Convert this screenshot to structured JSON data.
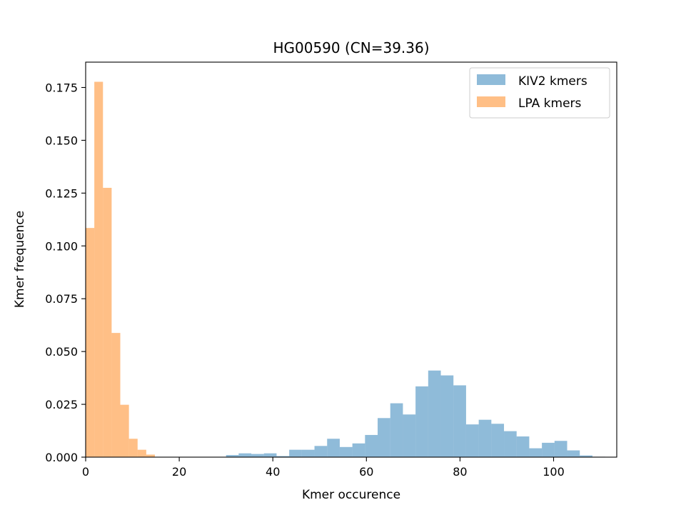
{
  "chart_data": {
    "type": "bar",
    "title": "HG00590 (CN=39.36)",
    "xlabel": "Kmer occurence",
    "ylabel": "Kmer frequence",
    "xlim": [
      0,
      113.5
    ],
    "ylim": [
      0,
      0.187
    ],
    "xticks": [
      0,
      20,
      40,
      60,
      80,
      100
    ],
    "xtick_labels": [
      "0",
      "20",
      "40",
      "60",
      "80",
      "100"
    ],
    "yticks": [
      0,
      0.025,
      0.05,
      0.075,
      0.1,
      0.125,
      0.15,
      0.175
    ],
    "ytick_labels": [
      "0.000",
      "0.025",
      "0.050",
      "0.075",
      "0.100",
      "0.125",
      "0.150",
      "0.175"
    ],
    "grid": false,
    "legend_position": "top-right",
    "series": [
      {
        "name": "KIV2 kmers",
        "color": "#1f77b4",
        "opacity": 0.5,
        "bins": [
          [
            30.0,
            32.7,
            0.001
          ],
          [
            32.7,
            35.4,
            0.0018
          ],
          [
            35.4,
            38.1,
            0.0015
          ],
          [
            38.1,
            40.8,
            0.0018
          ],
          [
            40.8,
            43.5,
            0.0005
          ],
          [
            43.5,
            46.2,
            0.0035
          ],
          [
            46.2,
            48.9,
            0.0035
          ],
          [
            48.9,
            51.6,
            0.0053
          ],
          [
            51.6,
            54.3,
            0.0087
          ],
          [
            54.3,
            57.0,
            0.0048
          ],
          [
            57.0,
            59.7,
            0.0065
          ],
          [
            59.7,
            62.4,
            0.0105
          ],
          [
            62.4,
            65.1,
            0.0185
          ],
          [
            65.1,
            67.8,
            0.0255
          ],
          [
            67.8,
            70.5,
            0.0202
          ],
          [
            70.5,
            73.2,
            0.0335
          ],
          [
            73.2,
            75.9,
            0.041
          ],
          [
            75.9,
            78.6,
            0.0387
          ],
          [
            78.6,
            81.3,
            0.034
          ],
          [
            81.3,
            84.0,
            0.0155
          ],
          [
            84.0,
            86.7,
            0.0177
          ],
          [
            86.7,
            89.4,
            0.0158
          ],
          [
            89.4,
            92.1,
            0.0123
          ],
          [
            92.1,
            94.8,
            0.0098
          ],
          [
            94.8,
            97.5,
            0.0042
          ],
          [
            97.5,
            100.2,
            0.0068
          ],
          [
            100.2,
            102.9,
            0.0077
          ],
          [
            102.9,
            105.6,
            0.0032
          ],
          [
            105.6,
            108.3,
            0.0008
          ],
          [
            108.3,
            111.0,
            0.0002
          ]
        ]
      },
      {
        "name": "LPA kmers",
        "color": "#ff7f0e",
        "opacity": 0.5,
        "bins": [
          [
            0.0,
            1.85,
            0.1085
          ],
          [
            1.85,
            3.7,
            0.1777
          ],
          [
            3.7,
            5.55,
            0.1275
          ],
          [
            5.55,
            7.4,
            0.0588
          ],
          [
            7.4,
            9.25,
            0.0248
          ],
          [
            9.25,
            11.1,
            0.0087
          ],
          [
            11.1,
            12.95,
            0.0035
          ],
          [
            12.95,
            14.8,
            0.0012
          ]
        ]
      }
    ]
  }
}
